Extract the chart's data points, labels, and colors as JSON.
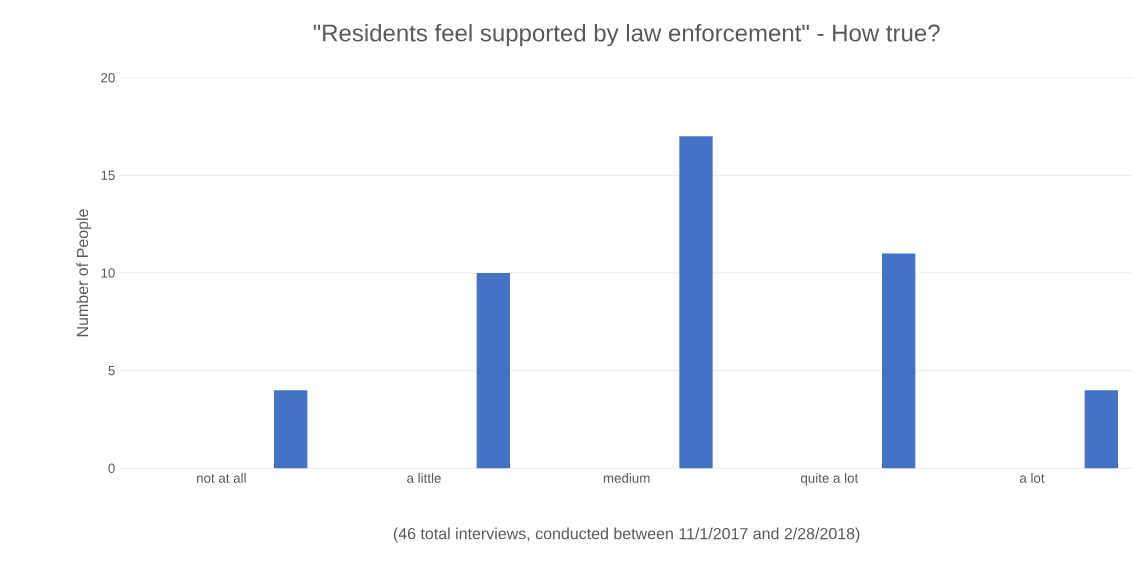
{
  "chart_data": {
    "type": "bar",
    "title": "\"Residents feel supported by law enforcement\" - How true?",
    "ylabel": "Number of People",
    "categories": [
      "not at all",
      "a little",
      "medium",
      "quite a lot",
      "a lot"
    ],
    "values": [
      4,
      10,
      17,
      11,
      4
    ],
    "color": "#4472c4",
    "ylim": [
      0,
      20
    ],
    "yticks": [
      0,
      5,
      10,
      15,
      20
    ],
    "grid": "y",
    "annotations": [
      "(46 total interviews, conducted between 11/1/2017 and 2/28/2018)"
    ]
  }
}
